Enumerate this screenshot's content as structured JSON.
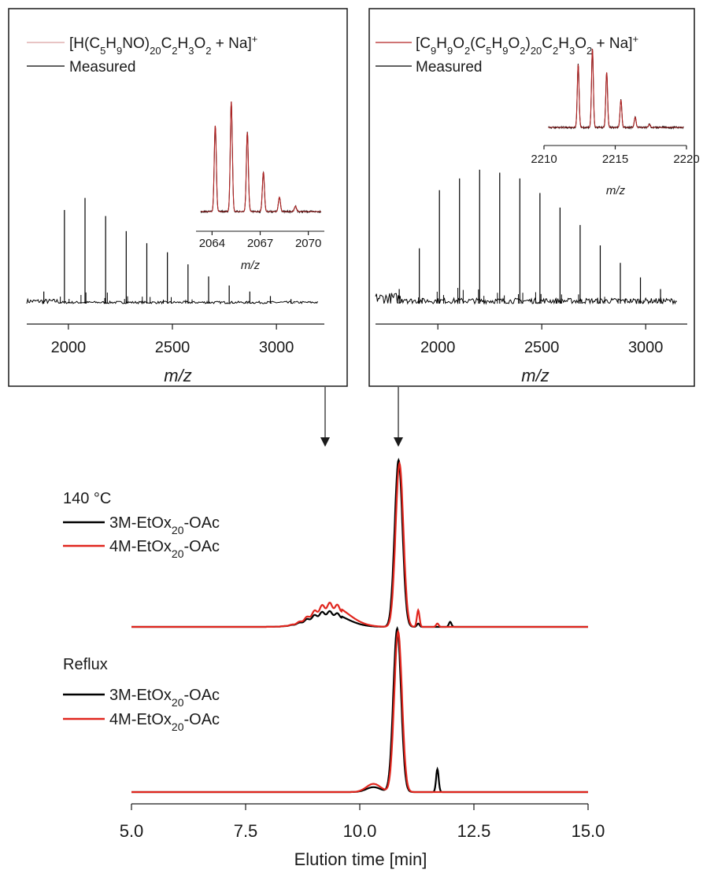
{
  "colors": {
    "measured": "#000000",
    "simulated": "#b22222",
    "series_3m": "#000000",
    "series_4m": "#e0261e",
    "frame": "#1a1a1a"
  },
  "chart_data": [
    {
      "id": "ms_left",
      "type": "line",
      "xlabel": "m/z",
      "xlim": [
        1800,
        3200
      ],
      "xticks": [
        2000,
        2500,
        3000
      ],
      "legend": [
        "[H(C5H9NO)20C2H3O2 + Na]+",
        "Measured"
      ],
      "legend_placement": "top-left",
      "peaks": {
        "x": [
          1882,
          1981,
          2080,
          2179,
          2278,
          2377,
          2476,
          2575,
          2674,
          2773,
          2872,
          2971,
          3070
        ],
        "height": [
          0.08,
          0.62,
          0.7,
          0.58,
          0.48,
          0.4,
          0.34,
          0.26,
          0.18,
          0.12,
          0.08,
          0.05,
          0.03
        ]
      },
      "inset": {
        "xlabel": "m/z",
        "xlim": [
          2063,
          2071
        ],
        "xticks": [
          2064,
          2067,
          2070
        ],
        "peaks_x": [
          2064.2,
          2065.2,
          2066.2,
          2067.2,
          2068.2,
          2069.2
        ],
        "peaks_height": [
          0.78,
          1.0,
          0.72,
          0.36,
          0.13,
          0.05
        ]
      }
    },
    {
      "id": "ms_right",
      "type": "line",
      "xlabel": "m/z",
      "xlim": [
        1700,
        3200
      ],
      "xticks": [
        2000,
        2500,
        3000
      ],
      "legend": [
        "[C9H9O2(C5H9O2)20C2H3O2 + Na]+",
        "Measured"
      ],
      "legend_placement": "top-left",
      "peaks": {
        "x": [
          1818,
          1918,
          2018,
          2118,
          2218,
          2318,
          2418,
          2518,
          2618,
          2718,
          2818,
          2918,
          3018,
          3118
        ],
        "height": [
          0.1,
          0.38,
          0.78,
          0.86,
          0.92,
          0.9,
          0.86,
          0.76,
          0.66,
          0.54,
          0.4,
          0.28,
          0.18,
          0.1
        ]
      },
      "inset": {
        "xlabel": "m/z",
        "xlim": [
          2210,
          2220
        ],
        "xticks": [
          2210,
          2215,
          2220
        ],
        "peaks_x": [
          2212.4,
          2213.4,
          2214.4,
          2215.4,
          2216.4,
          2217.4
        ],
        "peaks_height": [
          0.8,
          1.0,
          0.7,
          0.35,
          0.13,
          0.04
        ]
      }
    },
    {
      "id": "sec",
      "type": "line",
      "xlabel": "Elution time [min]",
      "xlim": [
        5.0,
        15.0
      ],
      "xticks": [
        "5.0",
        "7.5",
        "10.0",
        "12.5",
        "15.0"
      ],
      "groups": [
        {
          "label": "140 °C",
          "series": [
            {
              "name": "3M-EtOx20-OAc",
              "color": "#000000",
              "main_peak": {
                "x": 10.85,
                "h": 1.0
              },
              "shoulder": {
                "x": 9.3,
                "h": 0.085
              },
              "minor": [
                [
                  11.28,
                  0.02
                ],
                [
                  11.98,
                  0.03
                ]
              ]
            },
            {
              "name": "4M-EtOx20-OAc",
              "color": "#e0261e",
              "main_peak": {
                "x": 10.87,
                "h": 0.98
              },
              "shoulder": {
                "x": 9.35,
                "h": 0.13
              },
              "minor": [
                [
                  11.28,
                  0.1
                ],
                [
                  11.7,
                  0.02
                ]
              ]
            }
          ]
        },
        {
          "label": "Reflux",
          "series": [
            {
              "name": "3M-EtOx20-OAc",
              "color": "#000000",
              "main_peak": {
                "x": 10.82,
                "h": 1.0
              },
              "shoulder": {
                "x": 10.3,
                "h": 0.03
              },
              "minor": [
                [
                  11.7,
                  0.14
                ]
              ]
            },
            {
              "name": "4M-EtOx20-OAc",
              "color": "#e0261e",
              "main_peak": {
                "x": 10.84,
                "h": 0.98
              },
              "shoulder": {
                "x": 10.3,
                "h": 0.05
              },
              "minor": []
            }
          ]
        }
      ]
    }
  ]
}
